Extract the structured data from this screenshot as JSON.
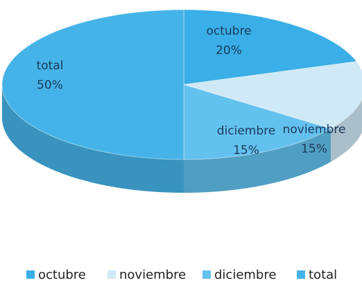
{
  "chart_data": {
    "type": "pie3d",
    "categories": [
      "octubre",
      "noviembre",
      "diciembre",
      "total"
    ],
    "values": [
      20,
      15,
      15,
      50
    ],
    "value_labels": [
      "20%",
      "15%",
      "15%",
      "50%"
    ],
    "colors": [
      "#3aaee6",
      "#cfe9f6",
      "#63c1ee",
      "#45b3e8"
    ],
    "legend": "bottom"
  }
}
